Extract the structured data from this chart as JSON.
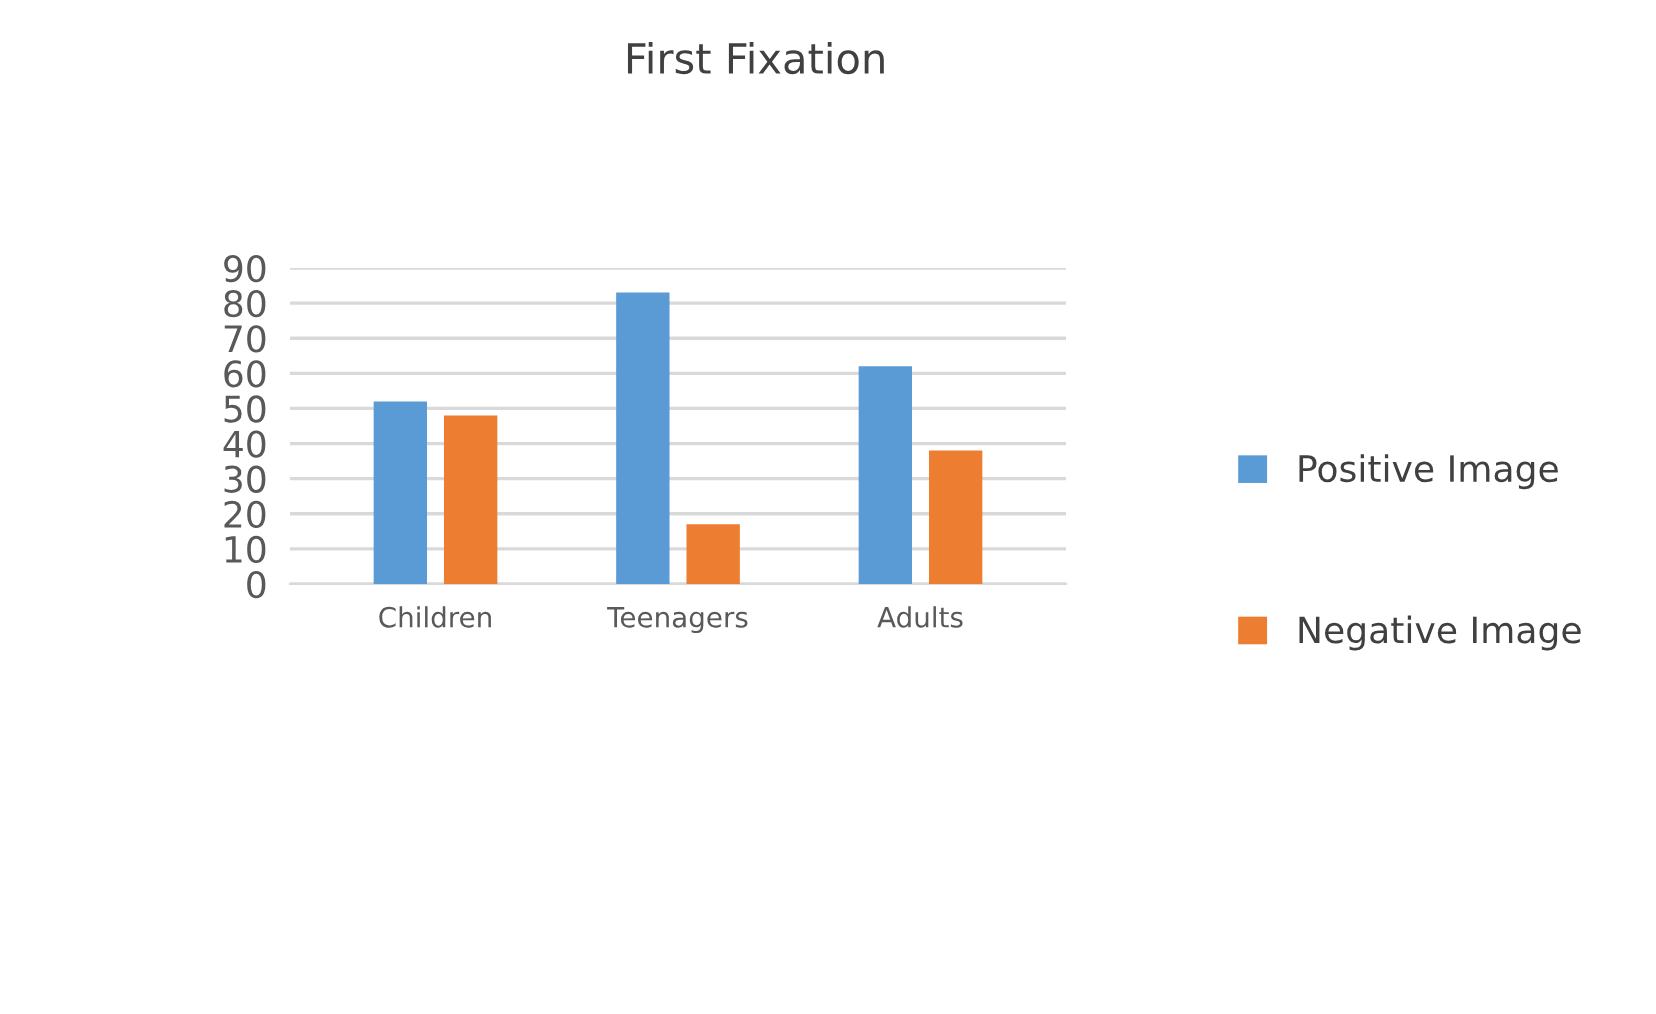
{
  "chart_data": {
    "type": "bar",
    "title": "First Fixation",
    "categories": [
      "Children",
      "Teenagers",
      "Adults"
    ],
    "series": [
      {
        "name": "Positive Image",
        "color": "#5b9bd5",
        "values": [
          52,
          83,
          62
        ]
      },
      {
        "name": "Negative Image",
        "color": "#ed7d31",
        "values": [
          48,
          17,
          38
        ]
      }
    ],
    "ylim": [
      0,
      90
    ],
    "yticks": [
      0,
      10,
      20,
      30,
      40,
      50,
      60,
      70,
      80,
      90
    ],
    "grid": "y",
    "legend": "right"
  }
}
